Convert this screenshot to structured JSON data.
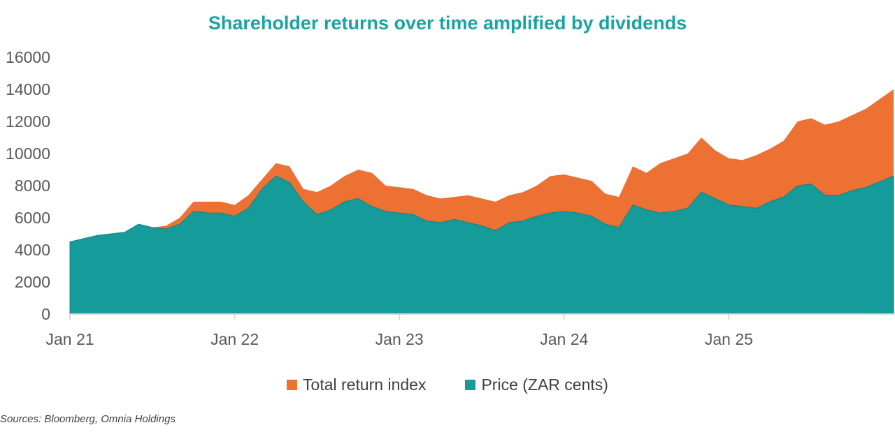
{
  "chart_data": {
    "type": "area",
    "title": "Shareholder returns over time amplified by dividends",
    "x": [
      "2021-01",
      "2021-02",
      "2021-03",
      "2021-04",
      "2021-05",
      "2021-06",
      "2021-07",
      "2021-08",
      "2021-09",
      "2021-10",
      "2021-11",
      "2021-12",
      "2022-01",
      "2022-02",
      "2022-03",
      "2022-04",
      "2022-05",
      "2022-06",
      "2022-07",
      "2022-08",
      "2022-09",
      "2022-10",
      "2022-11",
      "2022-12",
      "2023-01",
      "2023-02",
      "2023-03",
      "2023-04",
      "2023-05",
      "2023-06",
      "2023-07",
      "2023-08",
      "2023-09",
      "2023-10",
      "2023-11",
      "2023-12",
      "2024-01",
      "2024-02",
      "2024-03",
      "2024-04",
      "2024-05",
      "2024-06",
      "2024-07",
      "2024-08",
      "2024-09",
      "2024-10",
      "2024-11",
      "2024-12",
      "2025-01",
      "2025-02",
      "2025-03",
      "2025-04",
      "2025-05",
      "2025-06",
      "2025-07",
      "2025-08",
      "2025-09",
      "2025-10",
      "2025-11",
      "2025-12"
    ],
    "series": [
      {
        "name": "Total return index",
        "color": "#ec7133",
        "values": [
          4500,
          4700,
          4900,
          5000,
          5100,
          5600,
          5400,
          5500,
          6000,
          7000,
          7000,
          7000,
          6800,
          7400,
          8400,
          9400,
          9200,
          7800,
          7600,
          8000,
          8600,
          9000,
          8800,
          8000,
          7900,
          7800,
          7400,
          7200,
          7300,
          7400,
          7200,
          7000,
          7400,
          7600,
          8000,
          8600,
          8700,
          8500,
          8300,
          7500,
          7300,
          9200,
          8800,
          9400,
          9700,
          10000,
          11000,
          10200,
          9700,
          9600,
          9900,
          10300,
          10800,
          12000,
          12200,
          11800,
          12000,
          12400,
          12800,
          14000
        ]
      },
      {
        "name": "Price (ZAR cents)",
        "color": "#149b9a",
        "values": [
          4500,
          4700,
          4900,
          5000,
          5100,
          5600,
          5400,
          5300,
          5600,
          6400,
          6300,
          6300,
          6100,
          6600,
          7800,
          8600,
          8200,
          7000,
          6200,
          6500,
          7000,
          7200,
          6700,
          6400,
          6300,
          6200,
          5800,
          5700,
          5900,
          5700,
          5500,
          5200,
          5700,
          5800,
          6100,
          6300,
          6400,
          6300,
          6100,
          5600,
          5400,
          6800,
          6500,
          6300,
          6400,
          6600,
          7600,
          7200,
          6800,
          6700,
          6600,
          7000,
          7300,
          8000,
          8100,
          7400,
          7400,
          7700,
          7900,
          8600
        ]
      }
    ],
    "xticks": [
      {
        "label": "Jan 21",
        "date": "2021-01"
      },
      {
        "label": "Jan 22",
        "date": "2022-01"
      },
      {
        "label": "Jan 23",
        "date": "2023-01"
      },
      {
        "label": "Jan 24",
        "date": "2024-01"
      },
      {
        "label": "Jan 25",
        "date": "2025-01"
      }
    ],
    "yticks": [
      "0",
      "2000",
      "4000",
      "6000",
      "8000",
      "10000",
      "12000",
      "14000",
      "16000"
    ],
    "ylim": [
      0,
      16000
    ],
    "grid": false,
    "legend_position": "bottom"
  },
  "source": "Sources: Bloomberg, Omnia Holdings"
}
